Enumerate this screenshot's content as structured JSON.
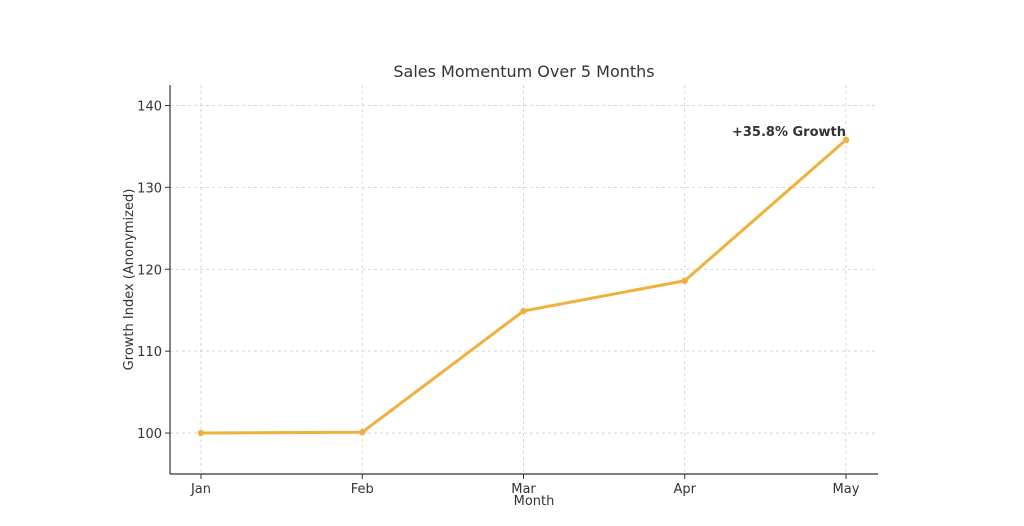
{
  "chart_data": {
    "type": "line",
    "title": "Sales Momentum Over 5 Months",
    "xlabel": "Month",
    "ylabel": "Growth Index (Anonymized)",
    "categories": [
      "Jan",
      "Feb",
      "Mar",
      "Apr",
      "May"
    ],
    "series": [
      {
        "values": [
          100.0,
          100.1,
          114.9,
          118.6,
          135.8
        ]
      }
    ],
    "ylim": [
      95,
      142.5
    ],
    "yticks": [
      100,
      110,
      120,
      130,
      140
    ],
    "grid": true,
    "annotation": {
      "text": "+35.8% Growth",
      "category": "May",
      "value": 135.8
    },
    "colors": {
      "line": "#f0b13c",
      "text": "#333333",
      "grid": "#cccccc",
      "axis": "#333333"
    }
  }
}
